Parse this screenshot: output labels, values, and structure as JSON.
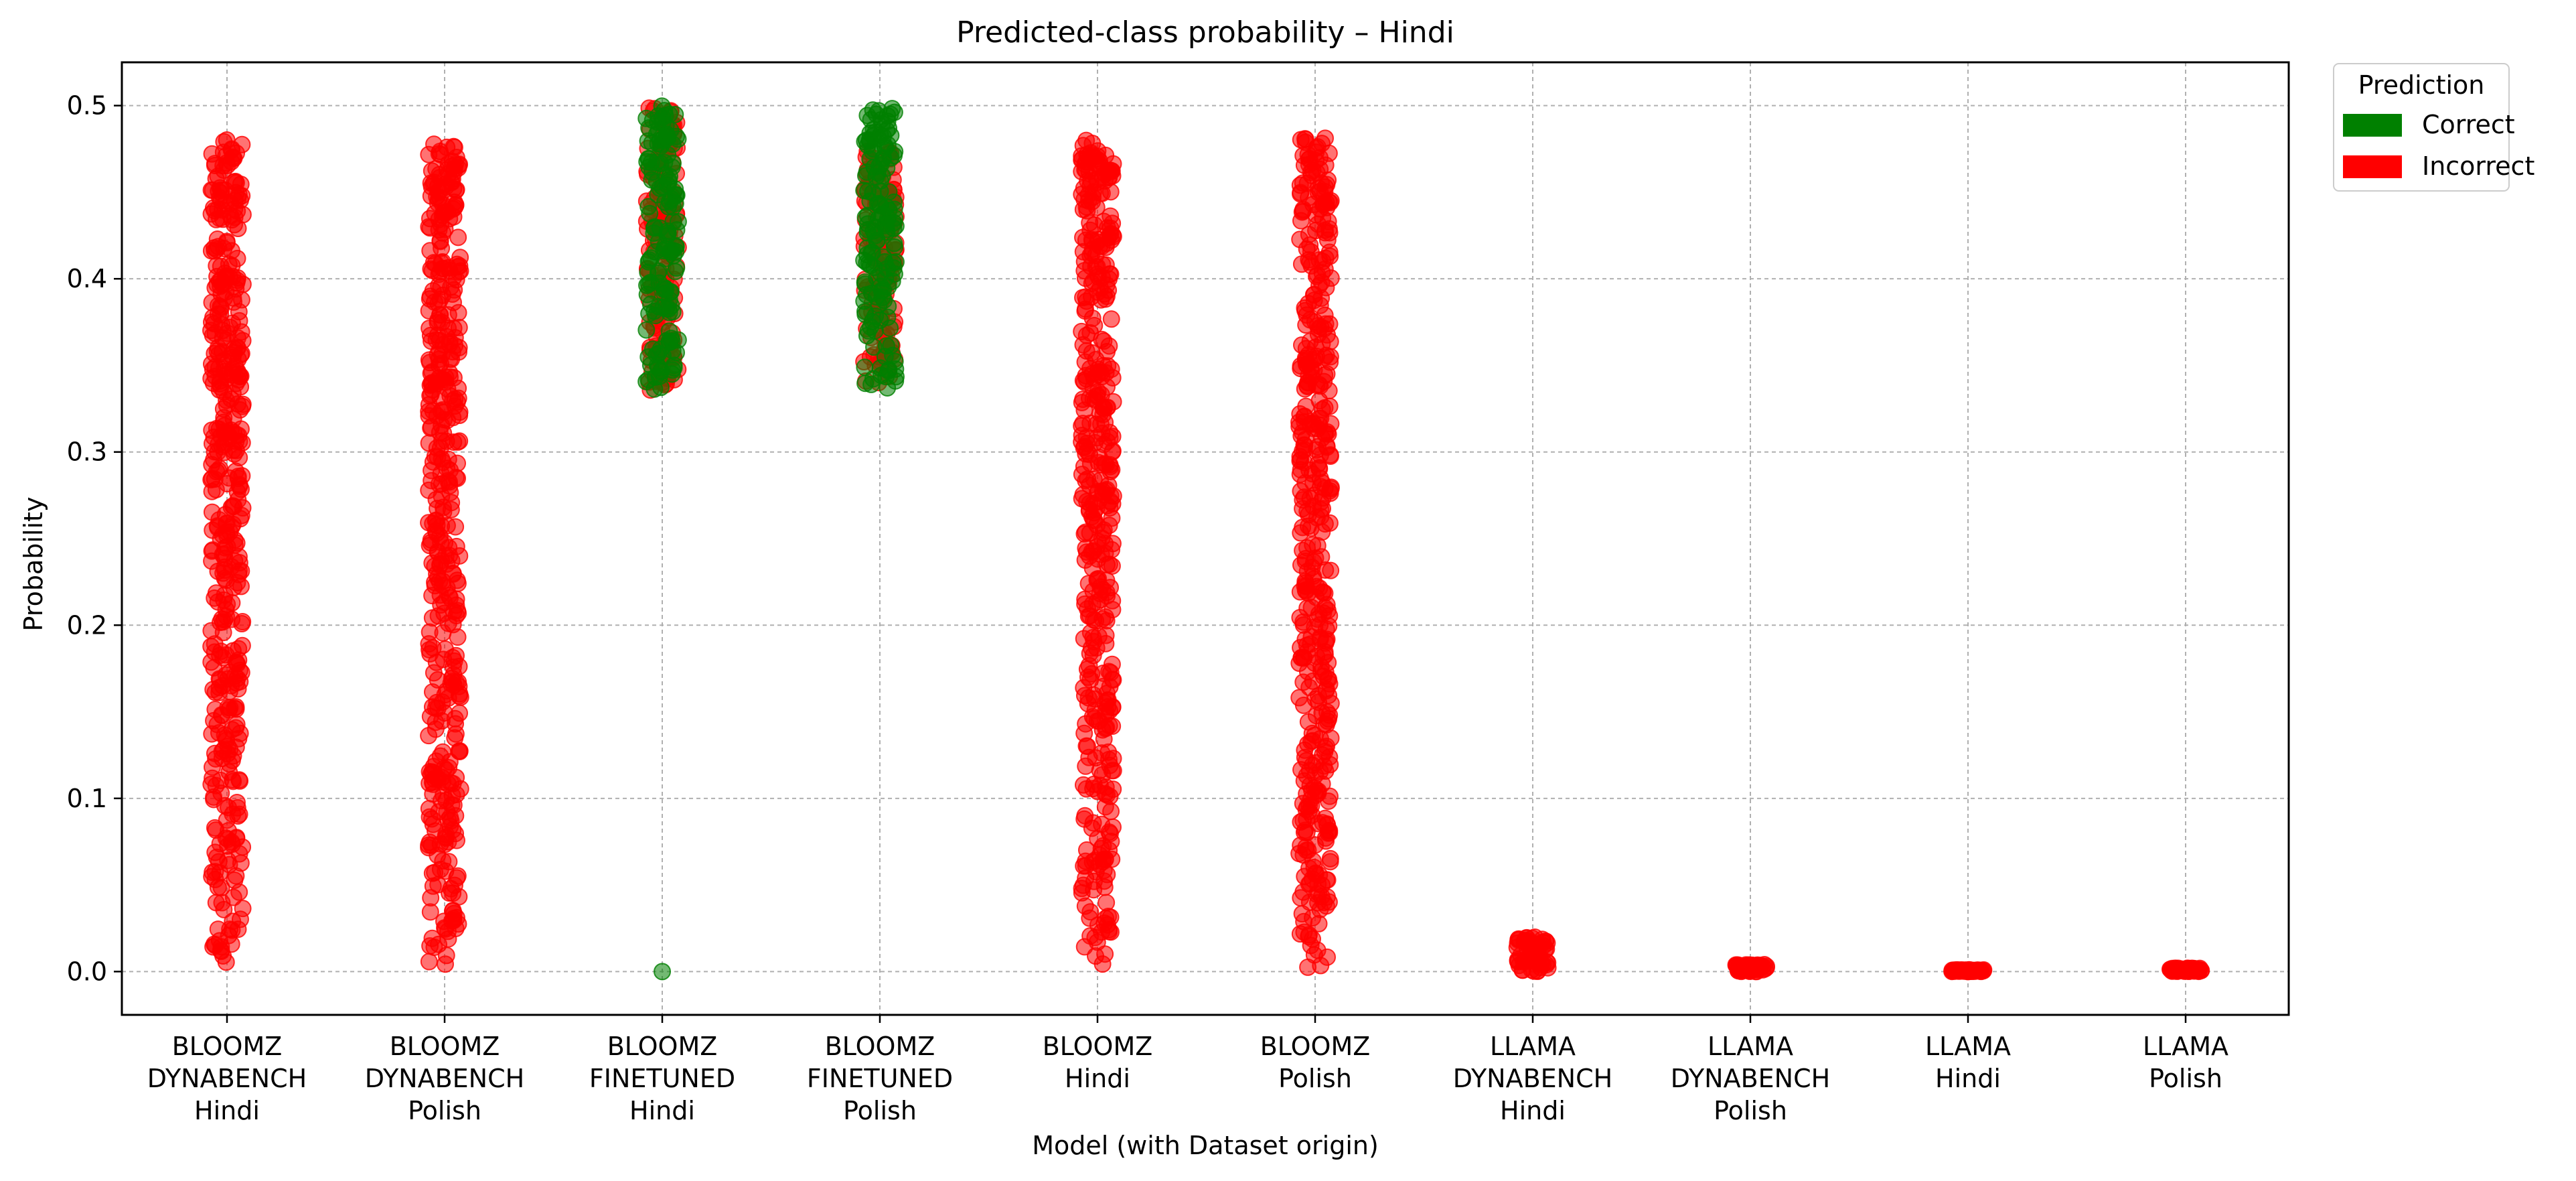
{
  "chart_data": {
    "type": "scatter",
    "title": "Predicted-class probability – Hindi",
    "xlabel": "Model (with Dataset origin)",
    "ylabel": "Probability",
    "ylim": [
      -0.025,
      0.525
    ],
    "yticks": [
      0.0,
      0.1,
      0.2,
      0.3,
      0.4,
      0.5
    ],
    "ytick_labels": [
      "0.0",
      "0.1",
      "0.2",
      "0.3",
      "0.4",
      "0.5"
    ],
    "grid": true,
    "categories": [
      [
        "BLOOMZ",
        "DYNABENCH",
        "Hindi"
      ],
      [
        "BLOOMZ",
        "DYNABENCH",
        "Polish"
      ],
      [
        "BLOOMZ",
        "FINETUNED",
        "Hindi"
      ],
      [
        "BLOOMZ",
        "FINETUNED",
        "Polish"
      ],
      [
        "BLOOMZ",
        "Hindi"
      ],
      [
        "BLOOMZ",
        "Polish"
      ],
      [
        "LLAMA",
        "DYNABENCH",
        "Hindi"
      ],
      [
        "LLAMA",
        "DYNABENCH",
        "Polish"
      ],
      [
        "LLAMA",
        "Hindi"
      ],
      [
        "LLAMA",
        "Polish"
      ]
    ],
    "legend": {
      "title": "Prediction",
      "placement": "outside-top-right",
      "entries": [
        {
          "label": "Correct",
          "color": "#008000"
        },
        {
          "label": "Incorrect",
          "color": "#ff0000"
        }
      ]
    },
    "series": [
      {
        "name": "Incorrect",
        "color": "#ff0000",
        "ranges": [
          {
            "category": 0,
            "min": 0.003,
            "max": 0.482
          },
          {
            "category": 1,
            "min": 0.001,
            "max": 0.478
          },
          {
            "category": 2,
            "min": 0.335,
            "max": 0.5
          },
          {
            "category": 3,
            "min": 0.34,
            "max": 0.475
          },
          {
            "category": 4,
            "min": 0.002,
            "max": 0.48
          },
          {
            "category": 5,
            "min": 0.0,
            "max": 0.482
          },
          {
            "category": 6,
            "min": 0.0,
            "max": 0.02
          },
          {
            "category": 7,
            "min": 0.0,
            "max": 0.004
          },
          {
            "category": 8,
            "min": 0.0,
            "max": 0.001
          },
          {
            "category": 9,
            "min": 0.0,
            "max": 0.002
          }
        ]
      },
      {
        "name": "Correct",
        "color": "#008000",
        "ranges": [
          {
            "category": 2,
            "min": 0.334,
            "max": 0.5
          },
          {
            "category": 3,
            "min": 0.334,
            "max": 0.5
          }
        ],
        "points": [
          {
            "category": 2,
            "y": 0.0
          }
        ]
      }
    ]
  }
}
